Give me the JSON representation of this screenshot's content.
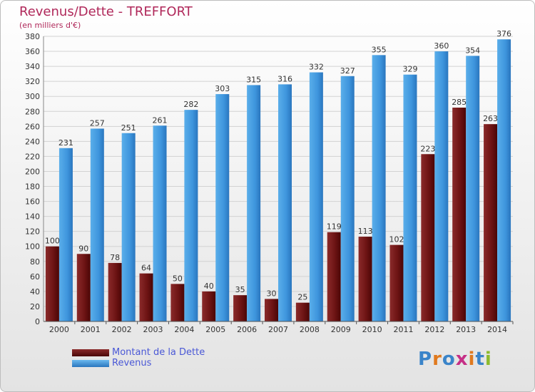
{
  "title": "Revenus/Dette - TREFFORT",
  "subtitle": "(en milliers d'€)",
  "brand": {
    "text": "Proxiti",
    "letters": [
      {
        "ch": "P",
        "color": "#3a84c9"
      },
      {
        "ch": "r",
        "color": "#e07a1f"
      },
      {
        "ch": "o",
        "color": "#3a84c9"
      },
      {
        "ch": "x",
        "color": "#c62f86"
      },
      {
        "ch": "i",
        "color": "#e07a1f"
      },
      {
        "ch": "t",
        "color": "#3a84c9"
      },
      {
        "ch": "i",
        "color": "#8dbb2e"
      }
    ]
  },
  "legend": [
    {
      "label": "Montant de la Dette",
      "color": "#6b0f0f"
    },
    {
      "label": "Revenus",
      "color": "#3e95dd"
    }
  ],
  "chart_data": {
    "type": "bar",
    "title": "Revenus/Dette - TREFFORT",
    "subtitle": "(en milliers d'€)",
    "xlabel": "",
    "ylabel": "",
    "ylim": [
      0,
      380
    ],
    "ytick_step": 20,
    "grid": true,
    "legend_position": "bottom-left",
    "categories": [
      "2000",
      "2001",
      "2002",
      "2003",
      "2004",
      "2005",
      "2006",
      "2007",
      "2008",
      "2009",
      "2010",
      "2011",
      "2012",
      "2013",
      "2014"
    ],
    "series": [
      {
        "name": "Montant de la Dette",
        "color": "#6b0f0f",
        "values": [
          100,
          90,
          78,
          64,
          50,
          40,
          35,
          30,
          25,
          119,
          113,
          102,
          223,
          285,
          263
        ]
      },
      {
        "name": "Revenus",
        "color": "#3e95dd",
        "values": [
          231,
          257,
          251,
          261,
          282,
          303,
          315,
          316,
          332,
          327,
          355,
          329,
          360,
          354,
          376
        ]
      }
    ]
  }
}
